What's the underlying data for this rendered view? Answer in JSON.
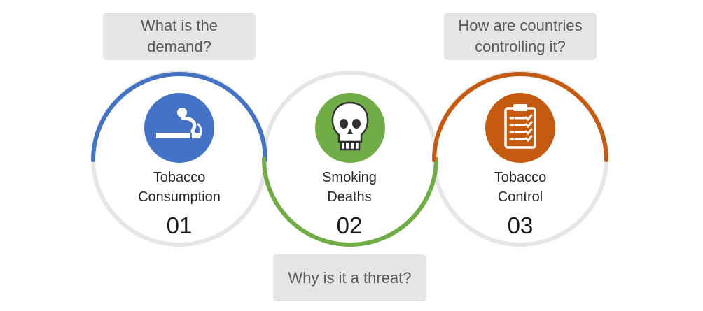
{
  "colors": {
    "step1": "#4472c4",
    "step2": "#70ad47",
    "step3": "#c55a11",
    "ring": "#e6e6e6",
    "question_bg": "#e5e5e5",
    "question_text": "#595959"
  },
  "steps": [
    {
      "label_line1": "Tobacco",
      "label_line2": "Consumption",
      "number": "01",
      "question_line1": "What is the",
      "question_line2": "demand?",
      "icon": "cigarette-icon"
    },
    {
      "label_line1": "Smoking",
      "label_line2": "Deaths",
      "number": "02",
      "question_line1": "Why is it a threat?",
      "question_line2": "",
      "icon": "skull-icon"
    },
    {
      "label_line1": "Tobacco",
      "label_line2": "Control",
      "number": "03",
      "question_line1": "How are countries",
      "question_line2": "controlling it?",
      "icon": "clipboard-checklist-icon"
    }
  ]
}
